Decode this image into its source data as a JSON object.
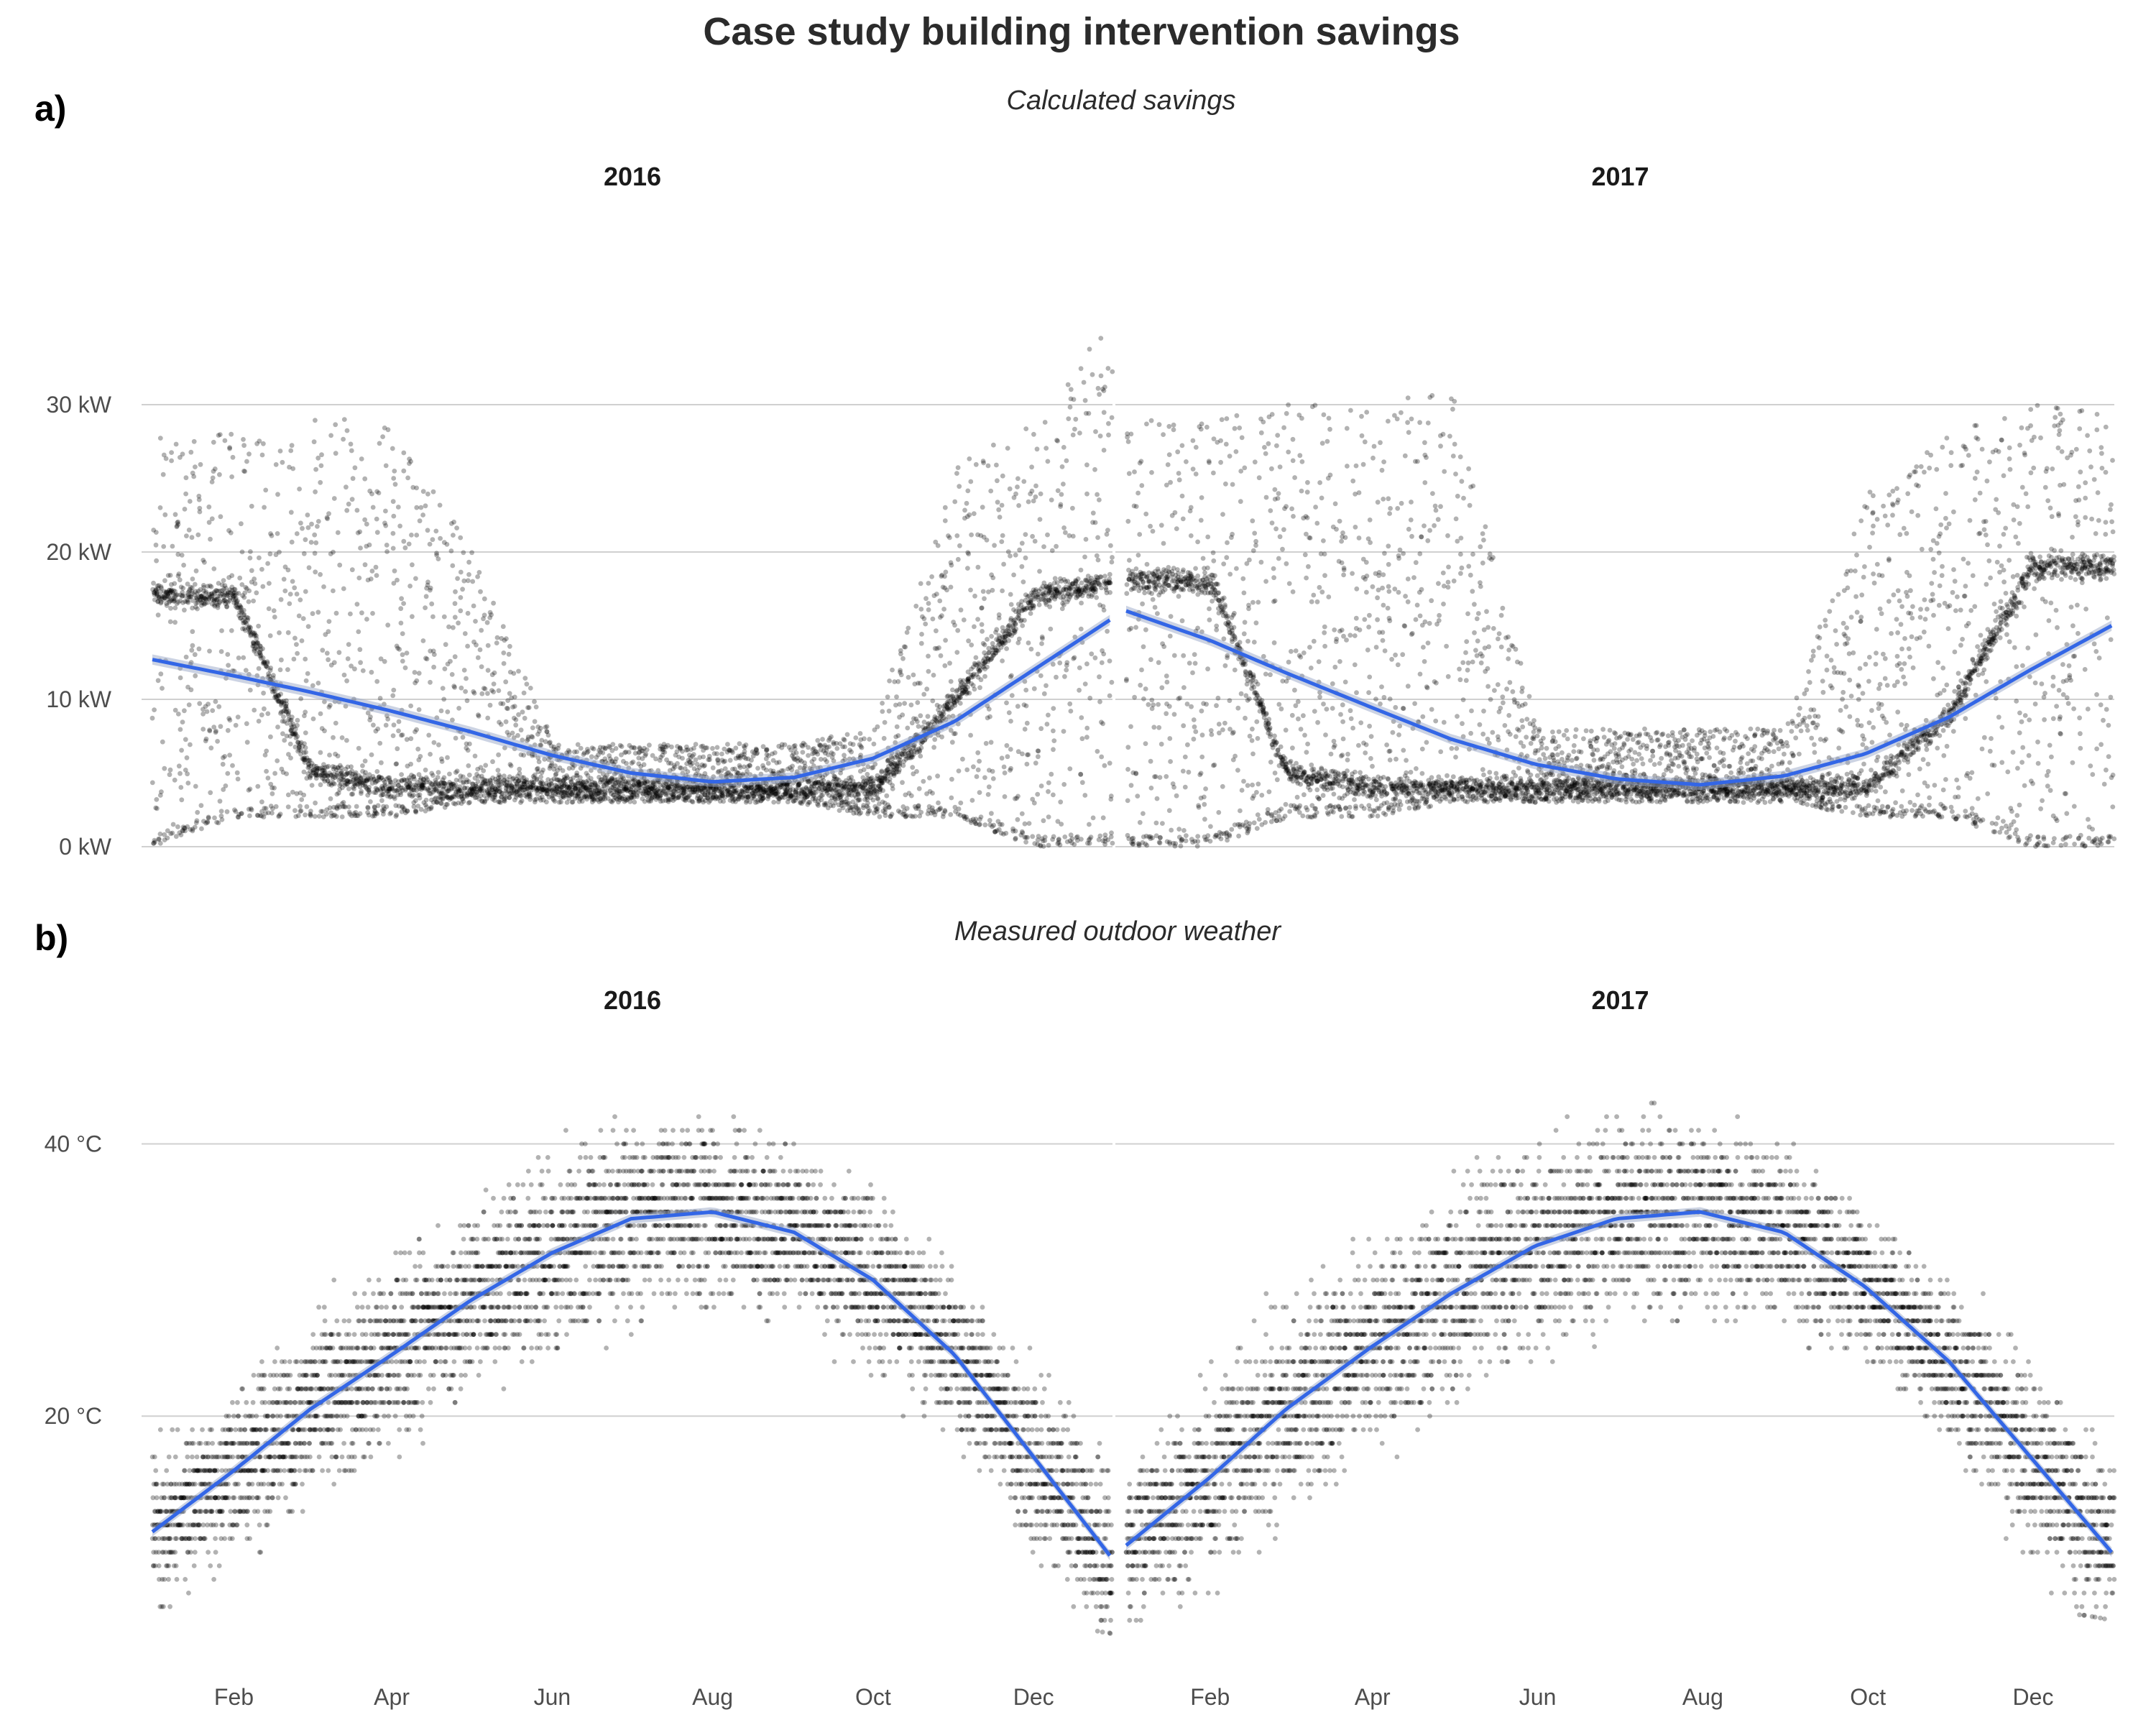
{
  "figure": {
    "title": "Case study building intervention savings",
    "panels": [
      {
        "tag": "a)",
        "subtitle": "Calculated savings"
      },
      {
        "tag": "b)",
        "subtitle": "Measured outdoor weather"
      }
    ]
  },
  "colors": {
    "points": "#000000",
    "smooth": "#3366e6",
    "band": "#9aa7c7",
    "grid": "#d0d0d0"
  },
  "chart_data": [
    {
      "type": "scatter",
      "title": "Calculated savings",
      "facets": [
        "2016",
        "2017"
      ],
      "x_axis": {
        "type": "date",
        "range": [
          "2016-01-01",
          "2016-12-31"
        ],
        "tick_labels": [
          "Feb",
          "Apr",
          "Jun",
          "Aug",
          "Oct",
          "Dec"
        ]
      },
      "y_axis": {
        "range": [
          0,
          36
        ],
        "ticks": [
          0,
          10,
          20,
          30
        ],
        "tick_labels": [
          "0 kW",
          "10 kW",
          "20 kW",
          "30 kW"
        ],
        "unit": "kW"
      },
      "grid": "horizontal",
      "series": [
        {
          "facet": "2016",
          "kind": "points",
          "observations": "hourly",
          "daily_profile": {
            "dates": [
              "2016-01-01",
              "2016-02-01",
              "2016-03-01",
              "2016-04-01",
              "2016-05-01",
              "2016-06-01",
              "2016-07-01",
              "2016-08-01",
              "2016-09-01",
              "2016-10-01",
              "2016-11-01",
              "2016-12-01",
              "2016-12-31"
            ],
            "low": [
              0,
              2,
              2,
              2,
              3,
              3,
              3,
              3,
              3,
              2,
              2,
              0,
              0
            ],
            "base": [
              17,
              17,
              5,
              4,
              4,
              4,
              4,
              4,
              4,
              4,
              10,
              17,
              18
            ],
            "high": [
              28,
              28,
              29,
              29,
              20,
              7,
              7,
              7,
              7,
              8,
              26,
              29,
              36
            ]
          }
        },
        {
          "facet": "2016",
          "kind": "smooth",
          "dates": [
            "2016-01-01",
            "2016-02-01",
            "2016-03-01",
            "2016-04-01",
            "2016-05-01",
            "2016-06-01",
            "2016-07-01",
            "2016-08-01",
            "2016-09-01",
            "2016-10-01",
            "2016-11-01",
            "2016-12-01",
            "2016-12-31"
          ],
          "values": [
            12.7,
            11.6,
            10.5,
            9.2,
            7.8,
            6.2,
            5.0,
            4.4,
            4.7,
            6.0,
            8.5,
            12.0,
            15.5
          ]
        },
        {
          "facet": "2017",
          "kind": "points",
          "observations": "hourly",
          "daily_profile": {
            "dates": [
              "2017-01-01",
              "2017-02-01",
              "2017-03-01",
              "2017-04-01",
              "2017-05-01",
              "2017-06-01",
              "2017-07-01",
              "2017-08-01",
              "2017-09-01",
              "2017-10-01",
              "2017-11-01",
              "2017-12-01",
              "2017-12-31"
            ],
            "low": [
              0,
              0,
              2,
              2,
              3,
              3,
              3,
              3,
              3,
              2,
              2,
              0,
              0
            ],
            "base": [
              18,
              18,
              5,
              4,
              4,
              4,
              4,
              4,
              4,
              4,
              9,
              19,
              19
            ],
            "high": [
              29,
              29,
              30,
              30,
              31,
              8,
              8,
              8,
              8,
              24,
              28,
              30,
              30
            ]
          }
        },
        {
          "facet": "2017",
          "kind": "smooth",
          "dates": [
            "2017-01-01",
            "2017-02-01",
            "2017-03-01",
            "2017-04-01",
            "2017-05-01",
            "2017-06-01",
            "2017-07-01",
            "2017-08-01",
            "2017-09-01",
            "2017-10-01",
            "2017-11-01",
            "2017-12-01",
            "2017-12-31"
          ],
          "values": [
            16.0,
            14.0,
            11.8,
            9.5,
            7.3,
            5.6,
            4.6,
            4.2,
            4.8,
            6.3,
            8.8,
            12.0,
            15.0
          ]
        }
      ]
    },
    {
      "type": "scatter",
      "title": "Measured outdoor weather",
      "facets": [
        "2016",
        "2017"
      ],
      "x_axis": {
        "type": "date",
        "range": [
          "2016-01-01",
          "2016-12-31"
        ],
        "tick_labels": [
          "Feb",
          "Apr",
          "Jun",
          "Aug",
          "Oct",
          "Dec"
        ]
      },
      "y_axis": {
        "range": [
          1,
          48
        ],
        "ticks": [
          20,
          40
        ],
        "tick_labels": [
          "20 °C",
          "40 °C"
        ],
        "unit": "°C"
      },
      "grid": "horizontal",
      "series": [
        {
          "facet": "2016",
          "kind": "points",
          "observations": "hourly",
          "daily_profile": {
            "dates": [
              "2016-01-01",
              "2016-02-01",
              "2016-03-01",
              "2016-04-01",
              "2016-05-01",
              "2016-06-01",
              "2016-07-01",
              "2016-08-01",
              "2016-09-01",
              "2016-10-01",
              "2016-11-01",
              "2016-12-01",
              "2016-12-31"
            ],
            "low": [
              3,
              6,
              12,
              13,
              16,
              22,
              26,
              25,
              24,
              19,
              14,
              5,
              4
            ],
            "high": [
              21,
              24,
              31,
              33,
              35,
              45,
              47,
              45,
              43,
              38,
              33,
              25,
              24
            ]
          }
        },
        {
          "facet": "2016",
          "kind": "smooth",
          "dates": [
            "2016-01-01",
            "2016-02-01",
            "2016-03-01",
            "2016-04-01",
            "2016-05-01",
            "2016-06-01",
            "2016-07-01",
            "2016-08-01",
            "2016-09-01",
            "2016-10-01",
            "2016-11-01",
            "2016-12-01",
            "2016-12-31"
          ],
          "values": [
            11.5,
            16.0,
            20.5,
            24.5,
            28.5,
            32.0,
            34.5,
            35.0,
            33.5,
            30.0,
            24.5,
            17.0,
            9.5
          ]
        },
        {
          "facet": "2017",
          "kind": "points",
          "observations": "hourly",
          "daily_profile": {
            "dates": [
              "2017-01-01",
              "2017-02-01",
              "2017-03-01",
              "2017-04-01",
              "2017-05-01",
              "2017-06-01",
              "2017-07-01",
              "2017-08-01",
              "2017-09-01",
              "2017-10-01",
              "2017-11-01",
              "2017-12-01",
              "2017-12-31"
            ],
            "low": [
              4,
              2,
              10,
              14,
              17,
              23,
              26,
              25,
              25,
              20,
              15,
              6,
              5
            ],
            "high": [
              20,
              24,
              34,
              35,
              40,
              46,
              48,
              46,
              43,
              37,
              32,
              27,
              25
            ]
          }
        },
        {
          "facet": "2017",
          "kind": "smooth",
          "dates": [
            "2017-01-01",
            "2017-02-01",
            "2017-03-01",
            "2017-04-01",
            "2017-05-01",
            "2017-06-01",
            "2017-07-01",
            "2017-08-01",
            "2017-09-01",
            "2017-10-01",
            "2017-11-01",
            "2017-12-01",
            "2017-12-31"
          ],
          "values": [
            10.5,
            15.5,
            20.5,
            25.0,
            29.0,
            32.5,
            34.5,
            35.0,
            33.5,
            29.5,
            24.0,
            17.0,
            10.0
          ]
        }
      ]
    }
  ]
}
